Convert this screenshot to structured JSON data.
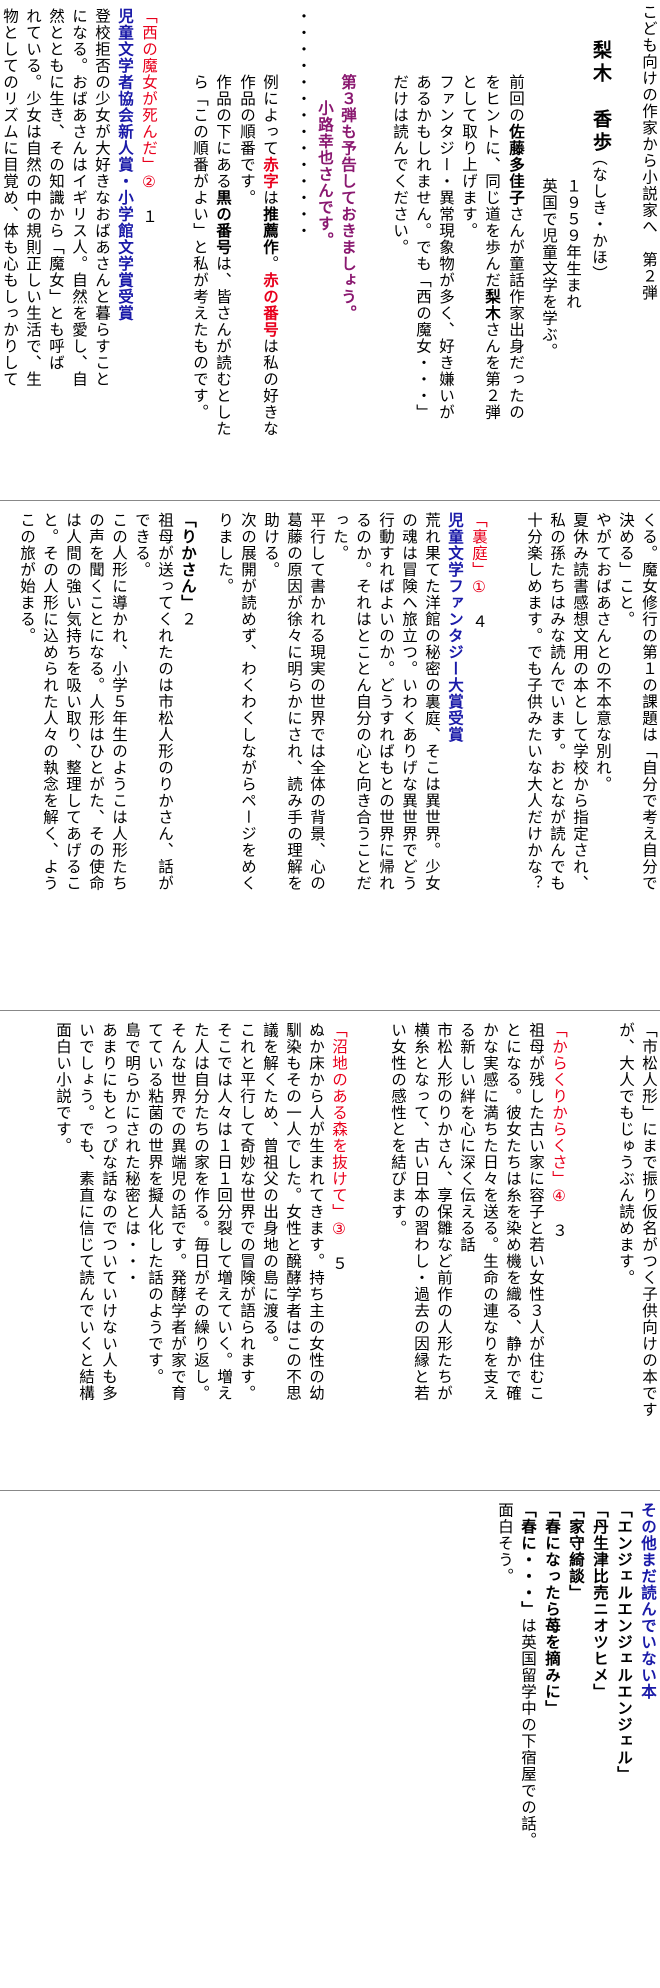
{
  "section1": {
    "header": "こども向けの作家から小説家へ　第２弾",
    "author_name": "梨木　香歩",
    "author_reading": "（なしき・かほ）",
    "author_born": "１９５９年生まれ",
    "author_note": "英国で児童文学を学ぶ。",
    "intro": [
      {
        "parts": [
          {
            "t": "前回の"
          },
          {
            "t": "佐藤多佳子",
            "c": "b"
          },
          {
            "t": "さんが童話作家出身だったの"
          }
        ]
      },
      {
        "parts": [
          {
            "t": "をヒントに、同じ道を歩んだ"
          },
          {
            "t": "梨木",
            "c": "b"
          },
          {
            "t": "さんを第２弾"
          }
        ]
      },
      {
        "parts": [
          {
            "t": "として取り上げます。"
          }
        ]
      },
      {
        "parts": [
          {
            "t": "ファンタジー・異常現象物が多く、好き嫌いが"
          }
        ]
      },
      {
        "parts": [
          {
            "t": "あるかもしれません。でも「西の魔女・・・」"
          }
        ]
      },
      {
        "parts": [
          {
            "t": "だけは読んでください。"
          }
        ]
      }
    ],
    "teaser1": "第３弾も予告しておきましょう。",
    "teaser2": "小路幸也さんです。",
    "dots": "・・・・・・・・・・・・・・",
    "legend": [
      {
        "parts": [
          {
            "t": "例によって"
          },
          {
            "t": "赤字",
            "c": "rb"
          },
          {
            "t": "は"
          },
          {
            "t": "推薦作",
            "c": "b"
          },
          {
            "t": "。"
          },
          {
            "t": "赤の番号",
            "c": "rb"
          },
          {
            "t": "は私の好きな"
          }
        ]
      },
      {
        "parts": [
          {
            "t": "作品の順番です。"
          }
        ]
      },
      {
        "parts": [
          {
            "t": "作品の下にある"
          },
          {
            "t": "黒の番号",
            "c": "b"
          },
          {
            "t": "は、皆さんが読むとした"
          }
        ]
      },
      {
        "parts": [
          {
            "t": "ら「この順番がよい」と私が考えたものです。"
          }
        ]
      }
    ],
    "book1_lines": [
      {
        "parts": [
          {
            "t": "「西の魔女が死んだ」",
            "c": "red"
          },
          {
            "t": "②",
            "c": "red"
          },
          {
            "t": "　１"
          }
        ]
      },
      {
        "parts": [
          {
            "t": "児童文学者協会新人賞・小学館文学賞受賞",
            "c": "blue"
          }
        ]
      },
      {
        "parts": [
          {
            "t": "登校拒否の少女が大好きなおばあさんと暮らすこと"
          }
        ]
      },
      {
        "parts": [
          {
            "t": "になる。おばあさんはイギリス人。自然を愛し、自"
          }
        ]
      },
      {
        "parts": [
          {
            "t": "然とともに生き、その知識から「魔女」とも呼ば"
          }
        ]
      },
      {
        "parts": [
          {
            "t": "れている。少女は自然の中の規則正しい生活で、生"
          }
        ]
      },
      {
        "parts": [
          {
            "t": "物としてのリズムに目覚め、体も心もしっかりして"
          }
        ]
      }
    ]
  },
  "section2": {
    "lines_right": [
      {
        "parts": [
          {
            "t": "くる。魔女修行の第１の課題は「自分で考え自分で"
          }
        ]
      },
      {
        "parts": [
          {
            "t": "決める」こと。"
          }
        ]
      },
      {
        "parts": [
          {
            "t": "やがておばあさんとの不本意な別れ。"
          }
        ]
      },
      {
        "parts": [
          {
            "t": "夏休み読書感想文用の本として学校から指定され、"
          }
        ]
      },
      {
        "parts": [
          {
            "t": "私の孫たちはみな読んでいます。おとなが読んでも"
          }
        ]
      },
      {
        "parts": [
          {
            "t": "十分楽しめます。でも子供みたいな大人だけかな？"
          }
        ]
      }
    ],
    "book2_lines": [
      {
        "parts": [
          {
            "t": "「裏庭」",
            "c": "red"
          },
          {
            "t": "①",
            "c": "red"
          },
          {
            "t": "　４"
          }
        ]
      },
      {
        "parts": [
          {
            "t": "児童文学ファンタジー大賞受賞",
            "c": "blue"
          }
        ]
      },
      {
        "parts": [
          {
            "t": "荒れ果てた洋館の秘密の裏庭、そこは異世界。少女"
          }
        ]
      },
      {
        "parts": [
          {
            "t": "の魂は冒険へ旅立つ。いわくありげな異世界でどう"
          }
        ]
      },
      {
        "parts": [
          {
            "t": "行動すればよいのか。どうすればもとの世界に帰れ"
          }
        ]
      },
      {
        "parts": [
          {
            "t": "るのか。それはとことん自分の心と向き合うことだ"
          }
        ]
      },
      {
        "parts": [
          {
            "t": "った。"
          }
        ]
      },
      {
        "parts": [
          {
            "t": "平行して書かれる現実の世界では全体の背景、心の"
          }
        ]
      },
      {
        "parts": [
          {
            "t": "葛藤の原因が徐々に明らかにされ、読み手の理解を"
          }
        ]
      },
      {
        "parts": [
          {
            "t": "助ける。"
          }
        ]
      },
      {
        "parts": [
          {
            "t": "次の展開が読めず、わくわくしながらページをめく"
          }
        ]
      },
      {
        "parts": [
          {
            "t": "りました。"
          }
        ]
      }
    ],
    "book3_lines": [
      {
        "parts": [
          {
            "t": "「りかさん」",
            "c": "b"
          },
          {
            "t": "２"
          }
        ]
      },
      {
        "parts": [
          {
            "t": "祖母が送ってくれたのは市松人形のりかさん、話が"
          }
        ]
      },
      {
        "parts": [
          {
            "t": "できる。"
          }
        ]
      },
      {
        "parts": [
          {
            "t": "この人形に導かれ、小学５年生のようこは人形たち"
          }
        ]
      },
      {
        "parts": [
          {
            "t": "の声を聞くことになる。人形はひとがた、その使命"
          }
        ]
      },
      {
        "parts": [
          {
            "t": "は人間の強い気持ちを吸い取り、整理してあげるこ"
          }
        ]
      },
      {
        "parts": [
          {
            "t": "と。その人形に込められた人々の執念を解く、よう"
          }
        ]
      },
      {
        "parts": [
          {
            "t": "この旅が始まる。"
          }
        ]
      }
    ]
  },
  "section3": {
    "lines_right": [
      {
        "parts": [
          {
            "t": "「市松人形」にまで振り仮名がつく子供向けの本です"
          }
        ]
      },
      {
        "parts": [
          {
            "t": "が、大人でもじゅうぶん読めます。"
          }
        ]
      }
    ],
    "book4_lines": [
      {
        "parts": [
          {
            "t": "「からくりからくさ」",
            "c": "red"
          },
          {
            "t": "④",
            "c": "red"
          },
          {
            "t": "　３"
          }
        ]
      },
      {
        "parts": [
          {
            "t": "祖母が残した古い家に容子と若い女性３人が住むこ"
          }
        ]
      },
      {
        "parts": [
          {
            "t": "とになる。彼女たちは糸を染め機を織る、静かで確"
          }
        ]
      },
      {
        "parts": [
          {
            "t": "かな実感に満ちた日々を送る。生命の連なりを支え"
          }
        ]
      },
      {
        "parts": [
          {
            "t": "る新しい絆を心に深く伝える話"
          }
        ]
      },
      {
        "parts": [
          {
            "t": "市松人形のりかさん、享保雛など前作の人形たちが"
          }
        ]
      },
      {
        "parts": [
          {
            "t": "横糸となって、古い日本の習わし・過去の因縁と若"
          }
        ]
      },
      {
        "parts": [
          {
            "t": "い女性の感性とを結びます。"
          }
        ]
      }
    ],
    "book5_lines": [
      {
        "parts": [
          {
            "t": "「沼地のある森を抜けて」",
            "c": "red"
          },
          {
            "t": "③",
            "c": "red"
          },
          {
            "t": "　５"
          }
        ]
      },
      {
        "parts": [
          {
            "t": "ぬか床から人が生まれてきます。持ち主の女性の幼"
          }
        ]
      },
      {
        "parts": [
          {
            "t": "馴染もその一人でした。女性と醗酵学者はこの不思"
          }
        ]
      },
      {
        "parts": [
          {
            "t": "議を解くため、曾祖父の出身地の島に渡る。"
          }
        ]
      },
      {
        "parts": [
          {
            "t": "これと平行して奇妙な世界での冒険が語られます。"
          }
        ]
      },
      {
        "parts": [
          {
            "t": "そこでは人々は１日１回分裂して増えていく。増え"
          }
        ]
      },
      {
        "parts": [
          {
            "t": "た人は自分たちの家を作る。毎日がその繰り返し。"
          }
        ]
      },
      {
        "parts": [
          {
            "t": "そんな世界での異端児の話です。発酵学者が家で育"
          }
        ]
      },
      {
        "parts": [
          {
            "t": "てている粘菌の世界を擬人化した話のようです。"
          }
        ]
      },
      {
        "parts": [
          {
            "t": "島で明らかにされた秘密とは・・・"
          }
        ]
      },
      {
        "parts": [
          {
            "t": "あまりにもとっぴな話なのでついていけない人も多"
          }
        ]
      },
      {
        "parts": [
          {
            "t": "いでしょう。でも、素直に信じて読んでいくと結構"
          }
        ]
      },
      {
        "parts": [
          {
            "t": "面白い小説です。"
          }
        ]
      }
    ]
  },
  "section4": {
    "lines": [
      {
        "parts": [
          {
            "t": "その他まだ読んでいない本",
            "c": "blue"
          }
        ]
      },
      {
        "parts": [
          {
            "t": "「エンジェルエンジェルエンジェル」",
            "c": "b"
          }
        ]
      },
      {
        "parts": [
          {
            "t": "「丹生津比売ニオツヒメ」",
            "c": "b"
          }
        ]
      },
      {
        "parts": [
          {
            "t": "「家守綺談」",
            "c": "b"
          }
        ]
      },
      {
        "parts": [
          {
            "t": "「春になったら苺を摘みに」",
            "c": "b"
          }
        ]
      },
      {
        "parts": [
          {
            "t": "「春に・・・」",
            "c": "b"
          },
          {
            "t": "は英国留学中の下宿屋での話。"
          }
        ]
      },
      {
        "parts": [
          {
            "t": "面白そう。"
          }
        ]
      }
    ]
  }
}
